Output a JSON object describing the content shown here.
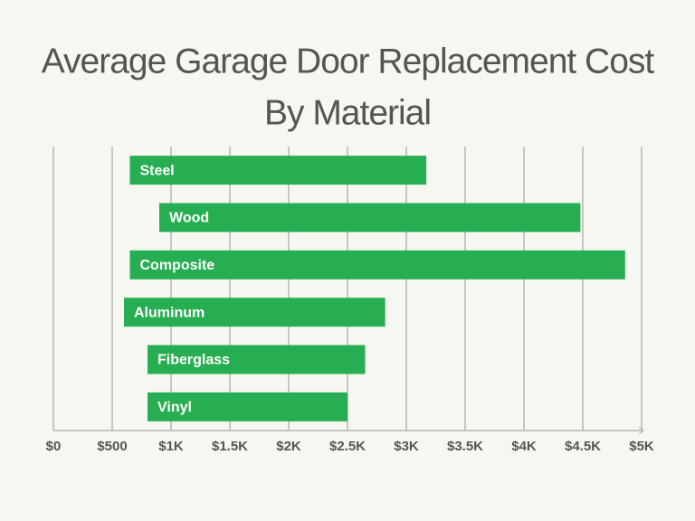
{
  "chart_data": {
    "type": "range-bar",
    "orientation": "horizontal",
    "title": [
      "Average Garage Door Replacement Cost",
      "By Material"
    ],
    "categories": [
      "Steel",
      "Wood",
      "Composite",
      "Aluminum",
      "Fiberglass",
      "Vinyl"
    ],
    "start": [
      650,
      900,
      650,
      600,
      800,
      800
    ],
    "end": [
      3170,
      4480,
      4860,
      2820,
      2650,
      2500
    ],
    "color": "#28ae52",
    "xlim": [
      0,
      5000
    ],
    "xticks": [
      {
        "value": 0,
        "label": "$0"
      },
      {
        "value": 500,
        "label": "$500"
      },
      {
        "value": 1000,
        "label": "$1K"
      },
      {
        "value": 1500,
        "label": "$1.5K"
      },
      {
        "value": 2000,
        "label": "$2K"
      },
      {
        "value": 2500,
        "label": "$2.5K"
      },
      {
        "value": 3000,
        "label": "$3K"
      },
      {
        "value": 3500,
        "label": "$3.5K"
      },
      {
        "value": 4000,
        "label": "$4K"
      },
      {
        "value": 4500,
        "label": "$4.5K"
      },
      {
        "value": 5000,
        "label": "$5K"
      }
    ],
    "grid": true
  }
}
